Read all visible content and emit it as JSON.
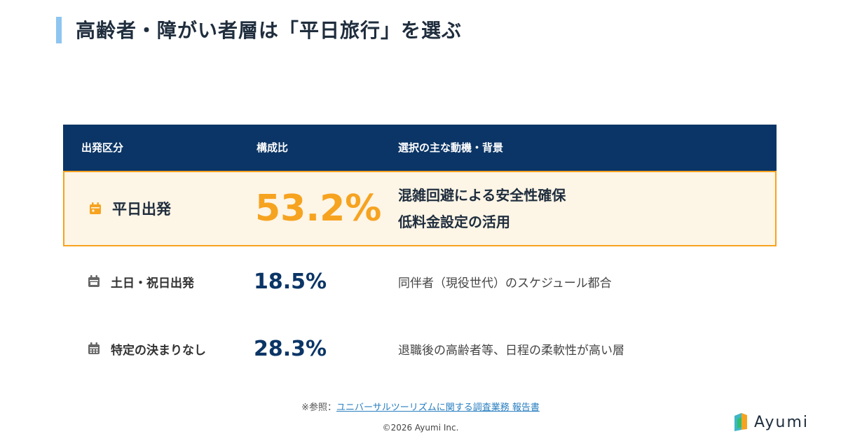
{
  "title": "高齢者・障がい者層は「平日旅行」を選ぶ",
  "table": {
    "headers": [
      "出発区分",
      "構成比",
      "選択の主な動機・背景"
    ],
    "rows": [
      {
        "icon": "calendar-icon",
        "category": "平日出発",
        "percent": "53.2%",
        "reason": [
          "混雑回避による安全性確保",
          "低料金設定の活用"
        ],
        "highlight": true
      },
      {
        "icon": "calendar-icon",
        "category": "土日・祝日出発",
        "percent": "18.5%",
        "reason": [
          "同伴者（現役世代）のスケジュール都合"
        ],
        "highlight": false
      },
      {
        "icon": "calendar-grid-icon",
        "category": "特定の決まりなし",
        "percent": "28.3%",
        "reason": [
          "退職後の高齢者等、日程の柔軟性が高い層"
        ],
        "highlight": false
      }
    ]
  },
  "reference": {
    "prefix": "※参照：",
    "link_text": "ユニバーサルツーリズムに関する調査業務 報告書"
  },
  "copyright": "©2026 Ayumi Inc.",
  "logo": {
    "text": "Ayumi"
  },
  "colors": {
    "header_bg": "#0b3566",
    "highlight": "#f6a320",
    "highlight_bg": "#fdf5e6",
    "accent_bar": "#8ec5f0"
  }
}
